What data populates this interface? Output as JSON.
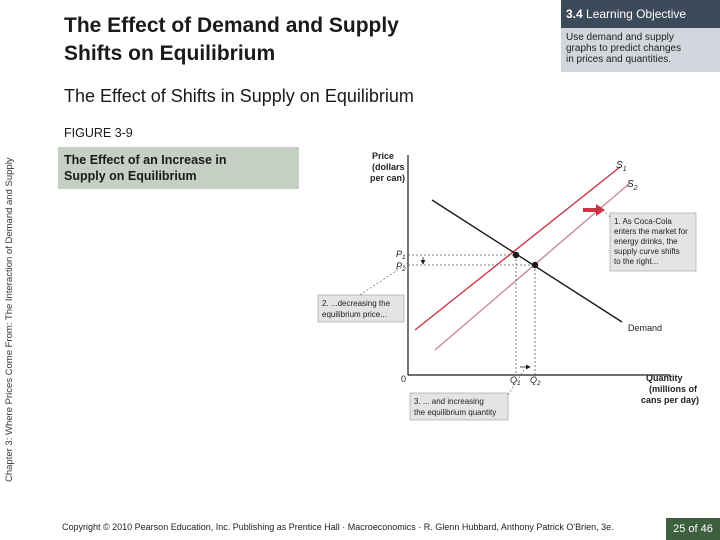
{
  "slide": {
    "title_line1": "The Effect of Demand and Supply",
    "title_line2": "Shifts on Equilibrium",
    "objective_number": "3.4",
    "objective_label": "Learning Objective",
    "objective_text_1": "Use demand and supply",
    "objective_text_2": "graphs to predict changes",
    "objective_text_3": "in prices and quantities.",
    "section_title": "The Effect of Shifts in Supply on Equilibrium",
    "side_label": "Chapter 3: Where Prices Come From: The Interaction of Demand and Supply",
    "figure_label": "FIGURE 3-9",
    "caption_line1": "The Effect of an Increase in",
    "caption_line2": "Supply on Equilibrium",
    "footer": "Copyright © 2010 Pearson Education, Inc. Publishing as Prentice Hall · Macroeconomics · R. Glenn Hubbard, Anthony Patrick O'Brien, 3e.",
    "page_number": "25 of 46"
  },
  "graph": {
    "y_axis_title_1": "Price",
    "y_axis_title_2": "(dollars",
    "y_axis_title_3": "per can)",
    "x_axis_title_1": "Quantity",
    "x_axis_title_2": "(millions of",
    "x_axis_title_3": "cans per day)",
    "origin": "0",
    "p1_label": "P",
    "p1_sub": "1",
    "p2_label": "P",
    "p2_sub": "2",
    "q1_label": "Q",
    "q1_sub": "1",
    "q2_label": "Q",
    "q2_sub": "2",
    "s1_label": "S",
    "s1_sub": "1",
    "s2_label": "S",
    "s2_sub": "2",
    "demand_label": "Demand",
    "note1_line1": "1. As Coca-Cola",
    "note1_line2": "enters the market for",
    "note1_line3": "energy drinks, the",
    "note1_line4": "supply curve shifts",
    "note1_line5": "to the right...",
    "note2_line1": "2. ...decreasing the",
    "note2_line2": "equilibrium price...",
    "note3_line1": "3. ... and increasing",
    "note3_line2": "the equilibrium quantity",
    "colors": {
      "supply_original": "#cc3344",
      "supply_new": "#c98a94",
      "demand": "#1a1a1a",
      "arrow": "#cc3344",
      "note_box": "#e4e4e4"
    }
  }
}
